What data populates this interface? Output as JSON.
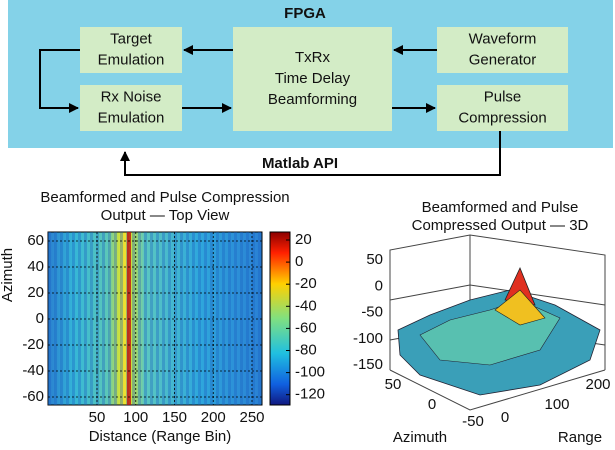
{
  "diagram": {
    "title": "FPGA",
    "nodes": [
      {
        "id": "target",
        "lines": [
          "Target",
          "Emulation"
        ]
      },
      {
        "id": "noise",
        "lines": [
          "Rx Noise",
          "Emulation"
        ]
      },
      {
        "id": "txrx",
        "lines": [
          "TxRx",
          "Time Delay",
          "Beamforming"
        ]
      },
      {
        "id": "waveform",
        "lines": [
          "Waveform",
          "Generator"
        ]
      },
      {
        "id": "pulse",
        "lines": [
          "Pulse",
          "Compression"
        ]
      }
    ],
    "link_label": "Matlab API"
  },
  "plots": [
    {
      "title_lines": [
        "Beamformed and Pulse Compression",
        "Output —  Top View"
      ],
      "ylabel": "Azimuth",
      "xlabel": "Distance (Range Bin)",
      "yticks": [
        60,
        40,
        20,
        0,
        -20,
        -40,
        -60
      ],
      "xticks": [
        50,
        100,
        150,
        200,
        250
      ],
      "colorbar_ticks": [
        20,
        0,
        -20,
        -40,
        -60,
        -80,
        -100,
        -120
      ]
    },
    {
      "title_lines": [
        "Beamformed and Pulse",
        "Compressed Output — 3D"
      ],
      "zticks": [
        50,
        0,
        -50,
        -100,
        -150
      ],
      "azimuth_ticks": [
        50,
        0,
        -50
      ],
      "range_ticks": [
        0,
        100,
        200
      ],
      "azimuth_label": "Azimuth",
      "range_label": "Range"
    }
  ]
}
